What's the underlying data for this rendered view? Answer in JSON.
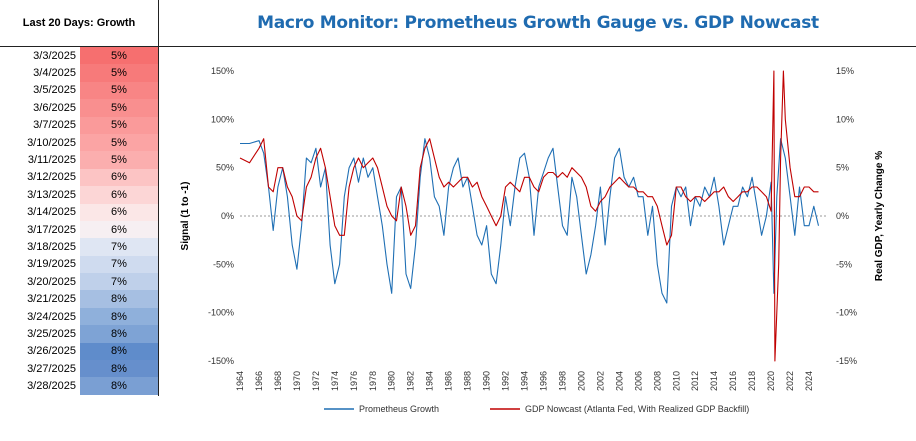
{
  "sidebar": {
    "header": "Last 20 Days: Growth",
    "rows": [
      {
        "date": "3/3/2025",
        "value": "5%",
        "color": "#f66f6f"
      },
      {
        "date": "3/4/2025",
        "value": "5%",
        "color": "#f77a7a"
      },
      {
        "date": "3/5/2025",
        "value": "5%",
        "color": "#f88585"
      },
      {
        "date": "3/6/2025",
        "value": "5%",
        "color": "#f98f8f"
      },
      {
        "date": "3/7/2025",
        "value": "5%",
        "color": "#fa9a9a"
      },
      {
        "date": "3/10/2025",
        "value": "5%",
        "color": "#fba4a4"
      },
      {
        "date": "3/11/2025",
        "value": "5%",
        "color": "#fbaeae"
      },
      {
        "date": "3/12/2025",
        "value": "6%",
        "color": "#fcc4c4"
      },
      {
        "date": "3/13/2025",
        "value": "6%",
        "color": "#fcd6d6"
      },
      {
        "date": "3/14/2025",
        "value": "6%",
        "color": "#fbe7e7"
      },
      {
        "date": "3/17/2025",
        "value": "6%",
        "color": "#f6eff2"
      },
      {
        "date": "3/18/2025",
        "value": "7%",
        "color": "#dfe6f3"
      },
      {
        "date": "3/19/2025",
        "value": "7%",
        "color": "#cfdbef"
      },
      {
        "date": "3/20/2025",
        "value": "7%",
        "color": "#bfd0ea"
      },
      {
        "date": "3/21/2025",
        "value": "8%",
        "color": "#a6bfe2"
      },
      {
        "date": "3/24/2025",
        "value": "8%",
        "color": "#8fb0db"
      },
      {
        "date": "3/25/2025",
        "value": "8%",
        "color": "#7ea3d5"
      },
      {
        "date": "3/26/2025",
        "value": "8%",
        "color": "#5f8ccb"
      },
      {
        "date": "3/27/2025",
        "value": "8%",
        "color": "#668fcc"
      },
      {
        "date": "3/28/2025",
        "value": "8%",
        "color": "#7a9fd3"
      }
    ]
  },
  "chart_data": {
    "type": "line",
    "title": "Macro Monitor: Prometheus Growth Gauge vs. GDP Nowcast",
    "ylabel": "Signal (1 to -1)",
    "y2label": "Real GDP, Yearly Change %",
    "ylim": [
      -1.5,
      1.5
    ],
    "y2lim": [
      -15,
      15
    ],
    "xlim": [
      1964,
      2026
    ],
    "y_ticks": [
      "150%",
      "100%",
      "50%",
      "0%",
      "-50%",
      "-100%",
      "-150%"
    ],
    "y2_ticks": [
      "15%",
      "10%",
      "5%",
      "0%",
      "-5%",
      "-10%",
      "-15%"
    ],
    "x_ticks": [
      "1964",
      "1966",
      "1968",
      "1970",
      "1972",
      "1974",
      "1976",
      "1978",
      "1980",
      "1982",
      "1984",
      "1986",
      "1988",
      "1990",
      "1992",
      "1994",
      "1996",
      "1998",
      "2000",
      "2002",
      "2004",
      "2006",
      "2008",
      "2010",
      "2012",
      "2014",
      "2016",
      "2018",
      "2020",
      "2022",
      "2024"
    ],
    "grid": false,
    "legend": "bottom",
    "series": [
      {
        "name": "Prometheus Growth",
        "axis": "left",
        "color": "#1f6fb4",
        "x": [
          1964,
          1965,
          1966,
          1966.5,
          1967,
          1967.5,
          1968,
          1968.5,
          1969,
          1969.5,
          1970,
          1970.5,
          1971,
          1971.5,
          1972,
          1972.5,
          1973,
          1973.5,
          1974,
          1974.5,
          1975,
          1975.5,
          1976,
          1976.5,
          1977,
          1977.5,
          1978,
          1978.5,
          1979,
          1979.5,
          1980,
          1980.5,
          1981,
          1981.5,
          1982,
          1982.5,
          1983,
          1983.5,
          1984,
          1984.5,
          1985,
          1985.5,
          1986,
          1986.5,
          1987,
          1987.5,
          1988,
          1988.5,
          1989,
          1989.5,
          1990,
          1990.5,
          1991,
          1991.5,
          1992,
          1992.5,
          1993,
          1993.5,
          1994,
          1994.5,
          1995,
          1995.5,
          1996,
          1996.5,
          1997,
          1997.5,
          1998,
          1998.5,
          1999,
          1999.5,
          2000,
          2000.5,
          2001,
          2001.5,
          2002,
          2002.5,
          2003,
          2003.5,
          2004,
          2004.5,
          2005,
          2005.5,
          2006,
          2006.5,
          2007,
          2007.5,
          2008,
          2008.5,
          2009,
          2009.5,
          2010,
          2010.5,
          2011,
          2011.5,
          2012,
          2012.5,
          2013,
          2013.5,
          2014,
          2014.5,
          2015,
          2015.5,
          2016,
          2016.5,
          2017,
          2017.5,
          2018,
          2018.5,
          2019,
          2019.5,
          2020,
          2020.3,
          2020.6,
          2021,
          2021.5,
          2022,
          2022.5,
          2023,
          2023.5,
          2024,
          2024.5,
          2025
        ],
        "values": [
          0.75,
          0.75,
          0.78,
          0.65,
          0.3,
          -0.15,
          0.3,
          0.5,
          0.2,
          -0.3,
          -0.55,
          -0.1,
          0.6,
          0.55,
          0.7,
          0.3,
          0.5,
          -0.3,
          -0.7,
          -0.5,
          0.2,
          0.5,
          0.6,
          0.35,
          0.6,
          0.4,
          0.5,
          0.2,
          -0.1,
          -0.5,
          -0.8,
          0.2,
          0.3,
          -0.6,
          -0.75,
          -0.3,
          0.4,
          0.8,
          0.6,
          0.2,
          0.1,
          -0.2,
          0.3,
          0.5,
          0.6,
          0.3,
          0.4,
          0.1,
          -0.2,
          -0.3,
          -0.1,
          -0.6,
          -0.7,
          -0.3,
          0.2,
          -0.1,
          0.3,
          0.6,
          0.65,
          0.4,
          -0.2,
          0.3,
          0.45,
          0.6,
          0.7,
          0.3,
          -0.1,
          -0.2,
          0.4,
          0.2,
          -0.2,
          -0.6,
          -0.4,
          -0.1,
          0.3,
          -0.3,
          0.2,
          0.6,
          0.7,
          0.4,
          0.3,
          0.4,
          0.2,
          0.2,
          -0.2,
          0.1,
          -0.5,
          -0.8,
          -0.9,
          0.1,
          0.3,
          0.2,
          0.3,
          -0.1,
          0.2,
          0.1,
          0.3,
          0.2,
          0.4,
          0.1,
          -0.3,
          -0.1,
          0.1,
          0.1,
          0.3,
          0.2,
          0.4,
          0.1,
          -0.2,
          0.0,
          0.35,
          -0.8,
          0.2,
          0.8,
          0.6,
          0.2,
          -0.2,
          0.3,
          -0.1,
          -0.1,
          0.1,
          -0.1
        ]
      },
      {
        "name": "GDP Nowcast (Atlanta Fed, With Realized GDP Backfill)",
        "axis": "right",
        "color": "#c00000",
        "x": [
          1964,
          1965,
          1966,
          1966.5,
          1967,
          1967.5,
          1968,
          1968.5,
          1969,
          1969.5,
          1970,
          1970.5,
          1971,
          1971.5,
          1972,
          1972.5,
          1973,
          1973.5,
          1974,
          1974.5,
          1975,
          1975.5,
          1976,
          1976.5,
          1977,
          1977.5,
          1978,
          1978.5,
          1979,
          1979.5,
          1980,
          1980.5,
          1981,
          1981.5,
          1982,
          1982.5,
          1983,
          1983.5,
          1984,
          1984.5,
          1985,
          1985.5,
          1986,
          1986.5,
          1987,
          1987.5,
          1988,
          1988.5,
          1989,
          1989.5,
          1990,
          1990.5,
          1991,
          1991.5,
          1992,
          1992.5,
          1993,
          1993.5,
          1994,
          1994.5,
          1995,
          1995.5,
          1996,
          1996.5,
          1997,
          1997.5,
          1998,
          1998.5,
          1999,
          1999.5,
          2000,
          2000.5,
          2001,
          2001.5,
          2002,
          2002.5,
          2003,
          2003.5,
          2004,
          2004.5,
          2005,
          2005.5,
          2006,
          2006.5,
          2007,
          2007.5,
          2008,
          2008.5,
          2009,
          2009.5,
          2010,
          2010.5,
          2011,
          2011.5,
          2012,
          2012.5,
          2013,
          2013.5,
          2014,
          2014.5,
          2015,
          2015.5,
          2016,
          2016.5,
          2017,
          2017.5,
          2018,
          2018.5,
          2019,
          2019.5,
          2020,
          2020.3,
          2020.4,
          2020.6,
          2020.8,
          2021,
          2021.3,
          2021.5,
          2022,
          2022.5,
          2023,
          2023.5,
          2024,
          2024.5,
          2025
        ],
        "values": [
          6,
          5.5,
          7,
          8,
          3,
          2.5,
          5,
          5,
          3,
          2,
          0,
          -0.5,
          3,
          4,
          6,
          7,
          5,
          2,
          -1,
          -2,
          -2,
          3,
          5,
          6,
          5,
          5.5,
          6,
          5,
          3,
          1,
          0,
          -0.5,
          3,
          1,
          -2,
          -1,
          5,
          7,
          8,
          6,
          4,
          3,
          3.5,
          3,
          3.5,
          4,
          4,
          3,
          3.5,
          2,
          1,
          0,
          -1,
          0,
          3,
          3.5,
          3,
          2.5,
          4,
          4,
          3,
          2.5,
          4,
          4.5,
          4.5,
          4,
          4.5,
          4,
          5,
          4.5,
          4,
          3,
          1,
          0.5,
          1.5,
          2,
          3,
          3.5,
          4,
          3.5,
          3,
          3,
          2.5,
          2.5,
          2,
          2,
          1,
          -1,
          -3,
          -2,
          3,
          3,
          2,
          1.5,
          2,
          2,
          1.5,
          2,
          2.5,
          2.5,
          3,
          2,
          1.5,
          2,
          2.5,
          2.5,
          3,
          3,
          2.5,
          2,
          0.5,
          15,
          -15,
          -10,
          -5,
          6,
          15,
          10,
          5,
          2,
          2,
          3,
          3,
          2.5,
          2.5
        ]
      }
    ]
  }
}
